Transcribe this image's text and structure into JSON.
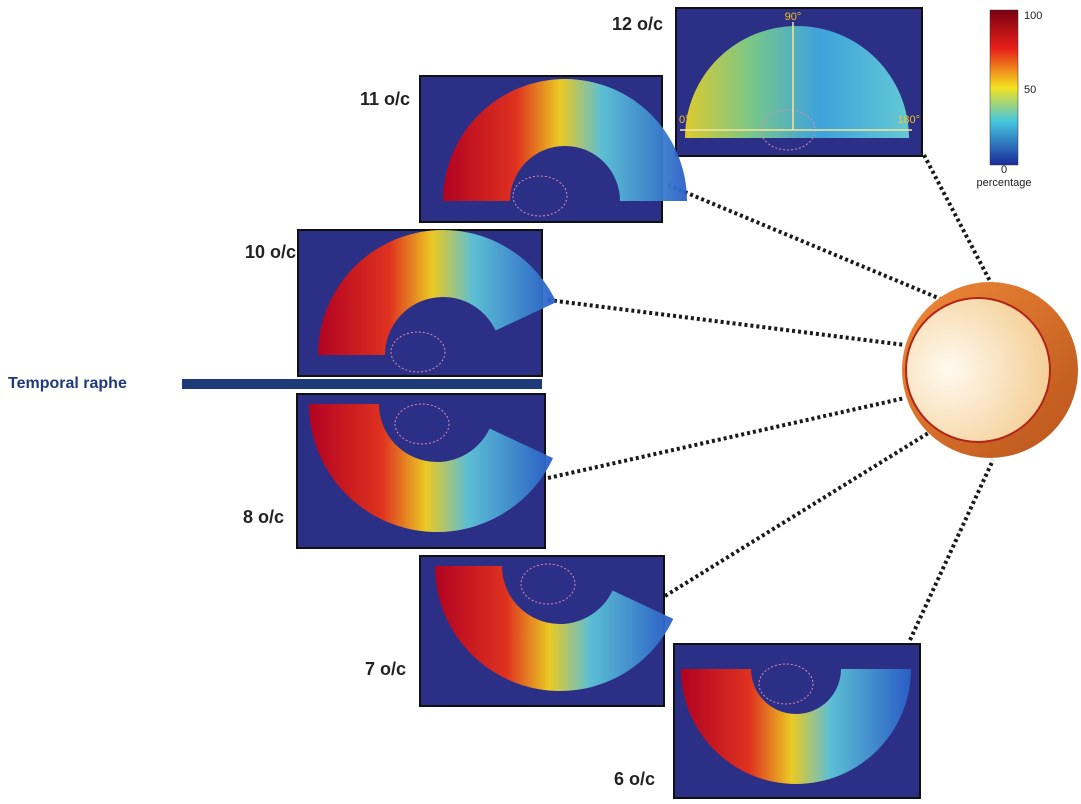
{
  "panels": [
    {
      "label": "12 o/c"
    },
    {
      "label": "11 o/c"
    },
    {
      "label": "10 o/c"
    },
    {
      "label": "8 o/c"
    },
    {
      "label": "7 o/c"
    },
    {
      "label": "6 o/c"
    }
  ],
  "angle_labels": {
    "top": "90°",
    "left": "0°",
    "right": "180°"
  },
  "raphe_label": "Temporal raphe",
  "colorbar": {
    "ticks": [
      100,
      50,
      0
    ],
    "label": "percentage"
  }
}
